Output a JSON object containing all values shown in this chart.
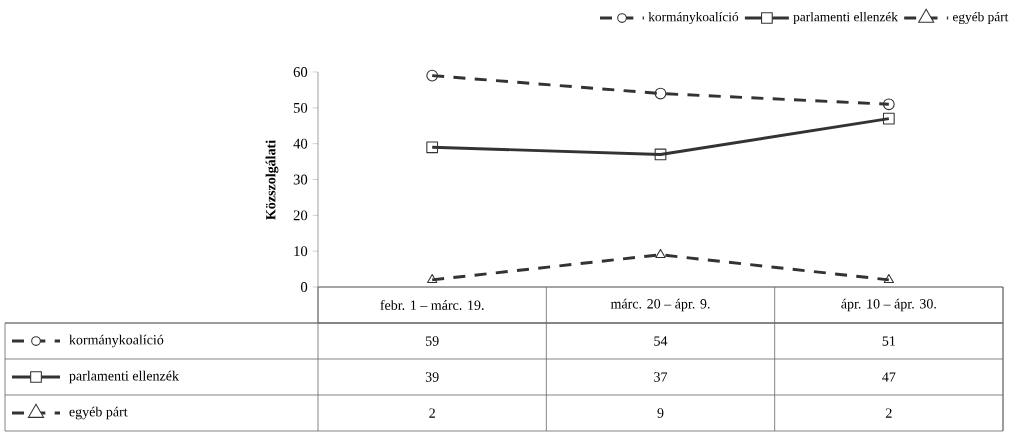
{
  "chart_data": {
    "type": "line",
    "ylabel": "Közszolgálati",
    "categories": [
      "febr. 1 – márc. 19.",
      "márc. 20 – ápr. 9.",
      "ápr. 10 – ápr. 30."
    ],
    "series": [
      {
        "name": "kormánykoalíció",
        "color": "#333333",
        "values": [
          59,
          54,
          51
        ],
        "marker": "circle",
        "line_style": "dashed"
      },
      {
        "name": "parlamenti ellenzék",
        "color": "#333333",
        "values": [
          39,
          37,
          47
        ],
        "marker": "square",
        "line_style": "solid"
      },
      {
        "name": "egyéb párt",
        "color": "#333333",
        "values": [
          2,
          9,
          2
        ],
        "marker": "triangle",
        "line_style": "dashed"
      }
    ],
    "ylim": [
      0,
      60
    ],
    "yticks": [
      0,
      10,
      20,
      30,
      40,
      50,
      60
    ],
    "legend": "top",
    "data_labels": true,
    "grid": false
  }
}
